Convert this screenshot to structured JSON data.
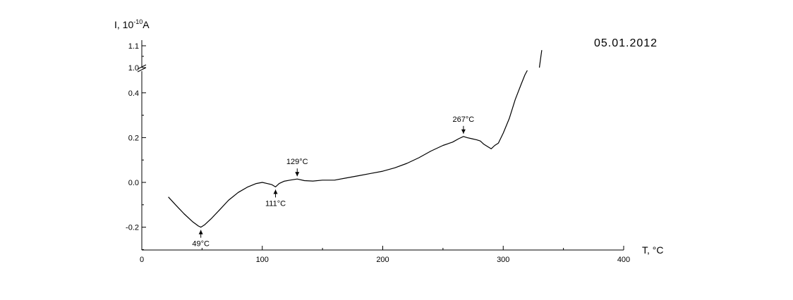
{
  "chart_data": {
    "type": "line",
    "title": "",
    "date": "05.01.2012",
    "xlabel": "T, °C",
    "ylabel_main": "I, 10",
    "ylabel_exp": "-10",
    "ylabel_unit": "A",
    "xlim": [
      0,
      400
    ],
    "x_ticks": [
      0,
      100,
      200,
      300,
      400
    ],
    "x_tick_labels": [
      "0",
      "100",
      "200",
      "300",
      "400"
    ],
    "y_axis_break": true,
    "y_lower_range": [
      -0.3,
      0.5
    ],
    "y_lower_ticks": [
      -0.2,
      0.0,
      0.2,
      0.4
    ],
    "y_lower_tick_labels": [
      "-0.2",
      "0.0",
      "0.2",
      "0.4"
    ],
    "y_upper_ticks": [
      1.0,
      1.1
    ],
    "y_upper_tick_labels": [
      "1.0",
      "1.1"
    ],
    "grid": false,
    "series": [
      {
        "color": "#000000",
        "x": [
          22,
          28,
          35,
          42,
          47,
          49,
          52,
          58,
          65,
          72,
          80,
          88,
          95,
          100,
          104,
          108,
          111,
          114,
          118,
          123,
          129,
          135,
          142,
          150,
          160,
          170,
          180,
          190,
          200,
          210,
          220,
          230,
          240,
          250,
          258,
          263,
          267,
          270,
          274,
          278,
          281,
          284,
          287,
          290,
          293,
          296,
          300,
          305,
          310,
          315,
          318,
          320
        ],
        "y": [
          -0.065,
          -0.1,
          -0.14,
          -0.175,
          -0.195,
          -0.2,
          -0.19,
          -0.16,
          -0.12,
          -0.08,
          -0.045,
          -0.02,
          -0.005,
          0.0,
          -0.005,
          -0.01,
          -0.02,
          -0.005,
          0.005,
          0.01,
          0.015,
          0.008,
          0.006,
          0.01,
          0.01,
          0.02,
          0.03,
          0.04,
          0.05,
          0.065,
          0.085,
          0.11,
          0.14,
          0.165,
          0.18,
          0.195,
          0.205,
          0.2,
          0.195,
          0.19,
          0.185,
          0.17,
          0.16,
          0.15,
          0.165,
          0.175,
          0.22,
          0.285,
          0.37,
          0.44,
          0.48,
          0.5
        ]
      },
      {
        "color": "#000000",
        "x": [
          330,
          331,
          332
        ],
        "y": [
          1.0,
          1.04,
          1.08
        ]
      }
    ],
    "annotations": [
      {
        "label": "49°C",
        "x": 49,
        "y": -0.2,
        "direction": "up"
      },
      {
        "label": "111°C",
        "x": 111,
        "y": -0.02,
        "direction": "up"
      },
      {
        "label": "129°C",
        "x": 129,
        "y": 0.015,
        "direction": "down"
      },
      {
        "label": "267°C",
        "x": 267,
        "y": 0.205,
        "direction": "down"
      }
    ]
  }
}
